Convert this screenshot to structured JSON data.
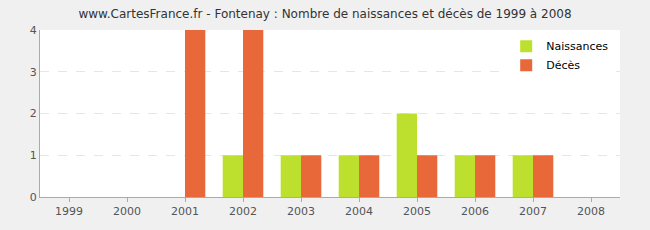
{
  "chart_data": {
    "type": "bar",
    "title": "www.CartesFrance.fr - Fontenay : Nombre de naissances et décès de 1999 à 2008",
    "categories": [
      "1999",
      "2000",
      "2001",
      "2002",
      "2003",
      "2004",
      "2005",
      "2006",
      "2007",
      "2008"
    ],
    "series": [
      {
        "name": "Naissances",
        "color": "#bde02e",
        "values": [
          0,
          0,
          0,
          1,
          1,
          1,
          2,
          1,
          1,
          0
        ]
      },
      {
        "name": "Décès",
        "color": "#e8683a",
        "values": [
          0,
          0,
          4,
          4,
          1,
          1,
          1,
          1,
          1,
          0
        ]
      }
    ],
    "ylim": [
      0,
      4
    ],
    "yticks": [
      0,
      1,
      2,
      3,
      4
    ],
    "grid": true,
    "legend": "top right"
  }
}
